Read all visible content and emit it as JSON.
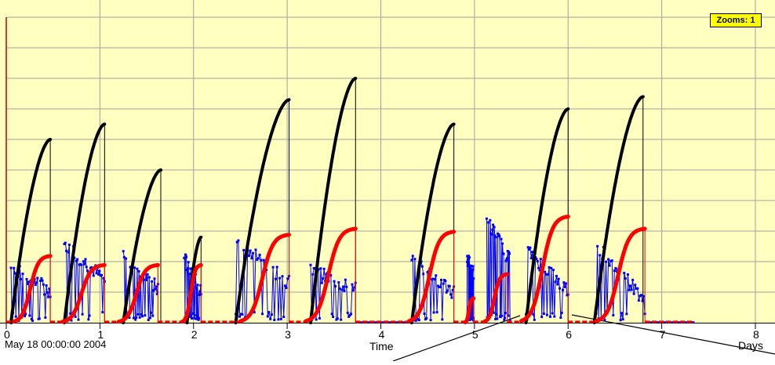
{
  "chart_data": {
    "type": "line",
    "xlabel": "Time",
    "x_unit_label": "Days",
    "start_label": "May 18 00:00:00 2004",
    "x_ticks": [
      0,
      1,
      2,
      3,
      4,
      5,
      6,
      7,
      8
    ],
    "xlim": [
      0,
      8
    ],
    "ylim": [
      0,
      10
    ],
    "grid": true,
    "zoom_badge": "Zooms: 1",
    "colors": {
      "background": "#ffffc0",
      "grid": "#a0a0a0",
      "black_series": "#000000",
      "red_series": "#ff0000",
      "blue_series": "#0000ff"
    },
    "series": [
      {
        "color": "black",
        "cycles": [
          {
            "start": 0.05,
            "end": 0.47,
            "peak": 6.0
          },
          {
            "start": 0.62,
            "end": 1.05,
            "peak": 6.5
          },
          {
            "start": 1.25,
            "end": 1.65,
            "peak": 5.0
          },
          {
            "start": 1.93,
            "end": 2.08,
            "peak": 2.8
          },
          {
            "start": 2.45,
            "end": 3.02,
            "peak": 7.3
          },
          {
            "start": 3.25,
            "end": 3.73,
            "peak": 8.0
          },
          {
            "start": 4.33,
            "end": 4.78,
            "peak": 6.5
          },
          {
            "start": 5.55,
            "end": 6.0,
            "peak": 7.0
          },
          {
            "start": 6.28,
            "end": 6.8,
            "peak": 7.4
          }
        ]
      },
      {
        "color": "red",
        "cycles": [
          {
            "start": 0.08,
            "end": 0.47,
            "peak": 2.2
          },
          {
            "start": 0.6,
            "end": 1.05,
            "peak": 1.9
          },
          {
            "start": 1.2,
            "end": 1.62,
            "peak": 1.9
          },
          {
            "start": 1.88,
            "end": 2.08,
            "peak": 1.9
          },
          {
            "start": 2.5,
            "end": 3.02,
            "peak": 2.9
          },
          {
            "start": 3.2,
            "end": 3.73,
            "peak": 3.1
          },
          {
            "start": 4.3,
            "end": 4.78,
            "peak": 3.0
          },
          {
            "start": 4.9,
            "end": 4.99,
            "peak": 0.8
          },
          {
            "start": 5.1,
            "end": 5.35,
            "peak": 1.6
          },
          {
            "start": 5.5,
            "end": 6.0,
            "peak": 3.5
          },
          {
            "start": 6.3,
            "end": 6.82,
            "peak": 3.1
          }
        ]
      },
      {
        "color": "blue",
        "bursts": [
          {
            "start": 0.05,
            "end": 0.47,
            "high": 1.8,
            "low": 1.05
          },
          {
            "start": 0.62,
            "end": 1.05,
            "high": 2.6,
            "low": 1.4
          },
          {
            "start": 1.25,
            "end": 1.62,
            "high": 2.2,
            "low": 1.1
          },
          {
            "start": 1.9,
            "end": 2.08,
            "high": 2.1,
            "low": 1.0
          },
          {
            "start": 2.45,
            "end": 3.02,
            "high": 2.8,
            "low": 1.3
          },
          {
            "start": 3.25,
            "end": 3.73,
            "high": 1.7,
            "low": 1.1
          },
          {
            "start": 4.33,
            "end": 4.78,
            "high": 2.1,
            "low": 1.0
          },
          {
            "start": 4.92,
            "end": 4.99,
            "high": 2.1,
            "low": 1.6
          },
          {
            "start": 5.13,
            "end": 5.38,
            "high": 3.4,
            "low": 2.0
          },
          {
            "start": 5.55,
            "end": 6.0,
            "high": 2.4,
            "low": 1.05
          },
          {
            "start": 6.3,
            "end": 6.82,
            "high": 2.5,
            "low": 0.75
          }
        ]
      }
    ]
  }
}
